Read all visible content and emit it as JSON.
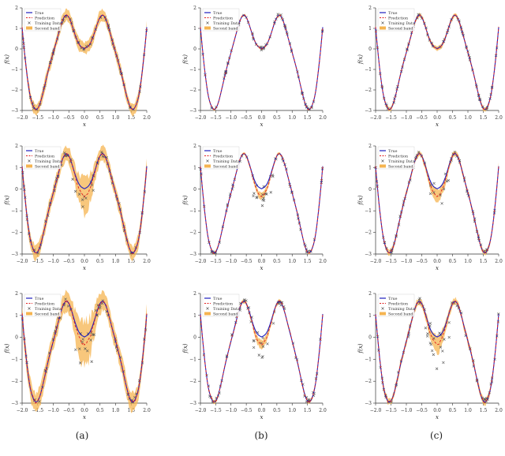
{
  "captions": [
    "(a)",
    "(b)",
    "(c)"
  ],
  "colors": {
    "true": "#1f1fbf",
    "prediction": "#e02020",
    "training": "#555555",
    "band": "#f5b450",
    "axis": "#333333"
  },
  "chart_data": [
    {
      "type": "line",
      "column": "a",
      "row": 1,
      "xlabel": "x",
      "ylabel": "f(x)",
      "xlim": [
        -2.0,
        2.0
      ],
      "ylim": [
        -3,
        2
      ],
      "x_ticks": [
        "−2.0",
        "−1.5",
        "−1.0",
        "−0.5",
        "0.0",
        "0.5",
        "1.0",
        "1.5",
        "2.0"
      ],
      "y_ticks": [
        "−3",
        "−2",
        "−1",
        "0",
        "1",
        "2"
      ],
      "legend": [
        "True",
        "Prediction",
        "Training Data",
        "Second band"
      ],
      "legend_position": "top-left",
      "series": [
        {
          "name": "True"
        },
        {
          "name": "Prediction"
        },
        {
          "name": "Training Data"
        },
        {
          "name": "Second band"
        }
      ],
      "noise": 0.05,
      "dip_noise": 0.0,
      "band_width": 0.28
    },
    {
      "type": "line",
      "column": "b",
      "row": 1,
      "xlabel": "x",
      "ylabel": "f(x)",
      "xlim": [
        -2.0,
        2.0
      ],
      "ylim": [
        -3,
        2
      ],
      "x_ticks": [
        "−2.0",
        "−1.5",
        "−1.0",
        "−0.5",
        "0.0",
        "0.5",
        "1.0",
        "1.5",
        "2.0"
      ],
      "y_ticks": [
        "−3",
        "−2",
        "−1",
        "0",
        "1",
        "2"
      ],
      "legend": [
        "True",
        "Prediction",
        "Training Data",
        "Second band"
      ],
      "legend_position": "top-left",
      "series": [
        {
          "name": "True"
        },
        {
          "name": "Prediction"
        },
        {
          "name": "Training Data"
        },
        {
          "name": "Second band"
        }
      ],
      "noise": 0.05,
      "dip_noise": 0.0,
      "band_width": 0.05
    },
    {
      "type": "line",
      "column": "c",
      "row": 1,
      "xlabel": "x",
      "ylabel": "f(x)",
      "xlim": [
        -2.0,
        2.0
      ],
      "ylim": [
        -3,
        2
      ],
      "x_ticks": [
        "−2.0",
        "−1.5",
        "−1.0",
        "−0.5",
        "0.0",
        "0.5",
        "1.0",
        "1.5",
        "2.0"
      ],
      "y_ticks": [
        "−3",
        "−2",
        "−1",
        "0",
        "1",
        "2"
      ],
      "legend": [
        "True",
        "Prediction",
        "Training Data",
        "Second band"
      ],
      "legend_position": "top-left",
      "series": [
        {
          "name": "True"
        },
        {
          "name": "Prediction"
        },
        {
          "name": "Training Data"
        },
        {
          "name": "Second band"
        }
      ],
      "noise": 0.05,
      "dip_noise": 0.0,
      "band_width": 0.1
    },
    {
      "type": "line",
      "column": "a",
      "row": 2,
      "xlabel": "x",
      "ylabel": "f(x)",
      "xlim": [
        -2.0,
        2.0
      ],
      "ylim": [
        -3,
        2
      ],
      "x_ticks": [
        "−2.0",
        "−1.5",
        "−1.0",
        "−0.5",
        "0.0",
        "0.5",
        "1.0",
        "1.5",
        "2.0"
      ],
      "y_ticks": [
        "−3",
        "−2",
        "−1",
        "0",
        "1",
        "2"
      ],
      "legend": [
        "True",
        "Prediction",
        "Training Data",
        "Second band"
      ],
      "legend_position": "top-left",
      "series": [
        {
          "name": "True"
        },
        {
          "name": "Prediction"
        },
        {
          "name": "Training Data"
        },
        {
          "name": "Second band"
        }
      ],
      "noise": 0.08,
      "dip_noise": 0.5,
      "band_width": 0.32
    },
    {
      "type": "line",
      "column": "b",
      "row": 2,
      "xlabel": "x",
      "ylabel": "f(x)",
      "xlim": [
        -2.0,
        2.0
      ],
      "ylim": [
        -3,
        2
      ],
      "x_ticks": [
        "−2.0",
        "−1.5",
        "−1.0",
        "−0.5",
        "0.0",
        "0.5",
        "1.0",
        "1.5",
        "2.0"
      ],
      "y_ticks": [
        "−3",
        "−2",
        "−1",
        "0",
        "1",
        "2"
      ],
      "legend": [
        "True",
        "Prediction",
        "Training Data",
        "Second band"
      ],
      "legend_position": "top-left",
      "series": [
        {
          "name": "True"
        },
        {
          "name": "Prediction"
        },
        {
          "name": "Training Data"
        },
        {
          "name": "Second band"
        }
      ],
      "noise": 0.06,
      "dip_noise": 0.5,
      "band_width": 0.06
    },
    {
      "type": "line",
      "column": "c",
      "row": 2,
      "xlabel": "x",
      "ylabel": "f(x)",
      "xlim": [
        -2.0,
        2.0
      ],
      "ylim": [
        -3,
        2
      ],
      "x_ticks": [
        "−2.0",
        "−1.5",
        "−1.0",
        "−0.5",
        "0.0",
        "0.5",
        "1.0",
        "1.5",
        "2.0"
      ],
      "y_ticks": [
        "−3",
        "−2",
        "−1",
        "0",
        "1",
        "2"
      ],
      "legend": [
        "True",
        "Prediction",
        "Training Data",
        "Second band"
      ],
      "legend_position": "top-left",
      "series": [
        {
          "name": "True"
        },
        {
          "name": "Prediction"
        },
        {
          "name": "Training Data"
        },
        {
          "name": "Second band"
        }
      ],
      "noise": 0.06,
      "dip_noise": 0.5,
      "band_width": 0.12
    },
    {
      "type": "line",
      "column": "a",
      "row": 3,
      "xlabel": "x",
      "ylabel": "f(x)",
      "xlim": [
        -2.0,
        2.0
      ],
      "ylim": [
        -3,
        2
      ],
      "x_ticks": [
        "−2.0",
        "−1.5",
        "−1.0",
        "−0.5",
        "0.0",
        "0.5",
        "1.0",
        "1.5",
        "2.0"
      ],
      "y_ticks": [
        "−3",
        "−2",
        "−1",
        "0",
        "1",
        "2"
      ],
      "legend": [
        "True",
        "Prediction",
        "Training Data",
        "Second band"
      ],
      "legend_position": "top-left",
      "series": [
        {
          "name": "True"
        },
        {
          "name": "Prediction"
        },
        {
          "name": "Training Data"
        },
        {
          "name": "Second band"
        }
      ],
      "noise": 0.12,
      "dip_noise": 0.8,
      "band_width": 0.42
    },
    {
      "type": "line",
      "column": "b",
      "row": 3,
      "xlabel": "x",
      "ylabel": "f(x)",
      "xlim": [
        -2.0,
        2.0
      ],
      "ylim": [
        -3,
        2
      ],
      "x_ticks": [
        "−2.0",
        "−1.5",
        "−1.0",
        "−0.5",
        "0.0",
        "0.5",
        "1.0",
        "1.5",
        "2.0"
      ],
      "y_ticks": [
        "−3",
        "−2",
        "−1",
        "0",
        "1",
        "2"
      ],
      "legend": [
        "True",
        "Prediction",
        "Training Data",
        "Second band"
      ],
      "legend_position": "top-left",
      "series": [
        {
          "name": "True"
        },
        {
          "name": "Prediction"
        },
        {
          "name": "Training Data"
        },
        {
          "name": "Second band"
        }
      ],
      "noise": 0.1,
      "dip_noise": 0.8,
      "band_width": 0.08
    },
    {
      "type": "line",
      "column": "c",
      "row": 3,
      "xlabel": "x",
      "ylabel": "f(x)",
      "xlim": [
        -2.0,
        2.0
      ],
      "ylim": [
        -3,
        2
      ],
      "x_ticks": [
        "−2.0",
        "−1.5",
        "−1.0",
        "−0.5",
        "0.0",
        "0.5",
        "1.0",
        "1.5",
        "2.0"
      ],
      "y_ticks": [
        "−3",
        "−2",
        "−1",
        "0",
        "1",
        "2"
      ],
      "legend": [
        "True",
        "Prediction",
        "Training Data",
        "Second band"
      ],
      "legend_position": "top-left",
      "series": [
        {
          "name": "True"
        },
        {
          "name": "Prediction"
        },
        {
          "name": "Training Data"
        },
        {
          "name": "Second band"
        }
      ],
      "noise": 0.1,
      "dip_noise": 0.8,
      "band_width": 0.15
    }
  ]
}
